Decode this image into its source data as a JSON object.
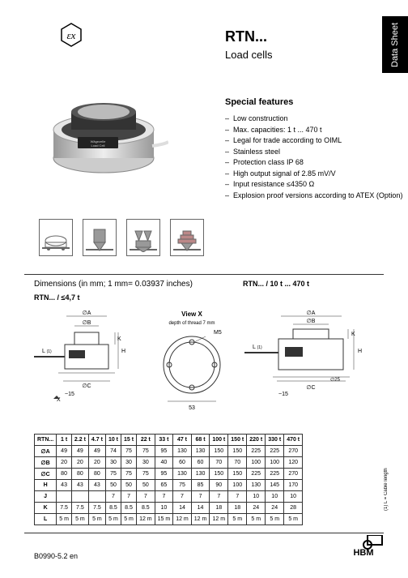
{
  "side_tab": "Data Sheet",
  "ex_symbol": "εx",
  "title": "RTN...",
  "subtitle": "Load cells",
  "features_header": "Special features",
  "features": [
    "Low construction",
    "Max. capacities: 1 t ... 470 t",
    "Legal for trade according to OIML",
    "Stainless steel",
    "Protection class IP 68",
    "High output signal of 2.85 mV/V",
    "Input resistance ≤4350 Ω",
    "Explosion proof versions according to ATEX (Option)"
  ],
  "dims_header": "Dimensions (in mm; 1 mm= 0.03937 inches)",
  "dims_range_small": "RTN... / ≤4,7 t",
  "dims_range_large": "RTN... / 10 t ... 470 t",
  "view_x_label": "View X",
  "view_x_sub": "depth of thread 7 mm",
  "dim_labels": {
    "A": "∅A",
    "B": "∅B",
    "C": "∅C",
    "L": "L",
    "K": "K",
    "H": "H",
    "M5": "M5",
    "fifteen": "~15",
    "fiftythree": "53",
    "twentyfive": "∅25",
    "X": "X",
    "one": "(1)"
  },
  "table": {
    "header": [
      "RTN...",
      "1 t",
      "2.2 t",
      "4.7 t",
      "10 t",
      "15 t",
      "22 t",
      "33 t",
      "47 t",
      "68 t",
      "100 t",
      "150 t",
      "220 t",
      "330 t",
      "470 t"
    ],
    "rows": [
      [
        "∅A",
        "49",
        "49",
        "49",
        "74",
        "75",
        "75",
        "95",
        "130",
        "130",
        "150",
        "150",
        "225",
        "225",
        "270"
      ],
      [
        "∅B",
        "20",
        "20",
        "20",
        "30",
        "30",
        "30",
        "40",
        "60",
        "60",
        "70",
        "70",
        "100",
        "100",
        "120"
      ],
      [
        "∅C",
        "80",
        "80",
        "80",
        "75",
        "75",
        "75",
        "95",
        "130",
        "130",
        "150",
        "150",
        "225",
        "225",
        "270"
      ],
      [
        "H",
        "43",
        "43",
        "43",
        "50",
        "50",
        "50",
        "65",
        "75",
        "85",
        "90",
        "100",
        "130",
        "145",
        "170"
      ],
      [
        "J",
        "",
        "",
        "",
        "7",
        "7",
        "7",
        "7",
        "7",
        "7",
        "7",
        "7",
        "10",
        "10",
        "10"
      ],
      [
        "K",
        "7.5",
        "7.5",
        "7.5",
        "8.5",
        "8.5",
        "8.5",
        "10",
        "14",
        "14",
        "18",
        "18",
        "24",
        "24",
        "28"
      ],
      [
        "L",
        "5 m",
        "5 m",
        "5 m",
        "5 m",
        "5 m",
        "12 m",
        "15 m",
        "12 m",
        "12 m",
        "12 m",
        "5 m",
        "5 m",
        "5 m",
        "5 m"
      ]
    ]
  },
  "footnote": "(1) L = Cable length",
  "footer_code": "B0990-5.2 en",
  "logo_text": "HBM"
}
